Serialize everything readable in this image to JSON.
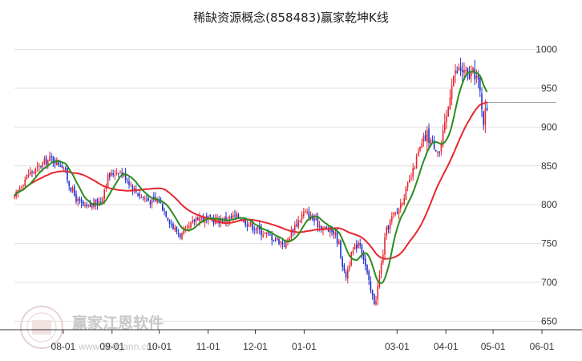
{
  "chart_data": {
    "type": "candlestick",
    "title": "稀缺资源概念(858483)赢家乾坤K线",
    "ylim": [
      640,
      1010
    ],
    "y_ticks": [
      650,
      700,
      750,
      800,
      850,
      900,
      950,
      1000
    ],
    "x_ticks": [
      "08-01",
      "09-01",
      "10-01",
      "11-01",
      "12-01",
      "01-01",
      "03-01",
      "04-01",
      "05-01",
      "06-01"
    ],
    "last_close": 932,
    "colors": {
      "up": "#e8262e",
      "down": "#1f2fd0",
      "ma_short": "#2a8c1f",
      "ma_long": "#e8262e",
      "grid": "#e0e0e0"
    },
    "anchors": [
      {
        "date": "07-01",
        "v": 808
      },
      {
        "date": "07-05",
        "v": 825
      },
      {
        "date": "07-10",
        "v": 840
      },
      {
        "date": "07-15",
        "v": 845
      },
      {
        "date": "07-20",
        "v": 855
      },
      {
        "date": "07-25",
        "v": 860
      },
      {
        "date": "07-28",
        "v": 855
      },
      {
        "date": "08-01",
        "v": 850
      },
      {
        "date": "08-05",
        "v": 825
      },
      {
        "date": "08-10",
        "v": 805
      },
      {
        "date": "08-15",
        "v": 795
      },
      {
        "date": "08-20",
        "v": 800
      },
      {
        "date": "08-25",
        "v": 805
      },
      {
        "date": "08-29",
        "v": 835
      },
      {
        "date": "09-05",
        "v": 845
      },
      {
        "date": "09-10",
        "v": 835
      },
      {
        "date": "09-15",
        "v": 820
      },
      {
        "date": "09-20",
        "v": 810
      },
      {
        "date": "09-25",
        "v": 805
      },
      {
        "date": "10-01",
        "v": 805
      },
      {
        "date": "10-05",
        "v": 790
      },
      {
        "date": "10-10",
        "v": 770
      },
      {
        "date": "10-15",
        "v": 760
      },
      {
        "date": "10-20",
        "v": 770
      },
      {
        "date": "10-25",
        "v": 785
      },
      {
        "date": "11-01",
        "v": 780
      },
      {
        "date": "11-10",
        "v": 780
      },
      {
        "date": "11-20",
        "v": 785
      },
      {
        "date": "11-25",
        "v": 778
      },
      {
        "date": "12-01",
        "v": 770
      },
      {
        "date": "12-05",
        "v": 765
      },
      {
        "date": "12-10",
        "v": 760
      },
      {
        "date": "12-15",
        "v": 755
      },
      {
        "date": "12-20",
        "v": 748
      },
      {
        "date": "12-25",
        "v": 770
      },
      {
        "date": "01-01",
        "v": 790
      },
      {
        "date": "01-05",
        "v": 785
      },
      {
        "date": "01-10",
        "v": 775
      },
      {
        "date": "01-15",
        "v": 768
      },
      {
        "date": "01-20",
        "v": 765
      },
      {
        "date": "01-23",
        "v": 750
      },
      {
        "date": "01-27",
        "v": 705
      },
      {
        "date": "01-31",
        "v": 735
      },
      {
        "date": "02-05",
        "v": 755
      },
      {
        "date": "02-08",
        "v": 730
      },
      {
        "date": "02-12",
        "v": 690
      },
      {
        "date": "02-15",
        "v": 672
      },
      {
        "date": "02-18",
        "v": 710
      },
      {
        "date": "02-22",
        "v": 765
      },
      {
        "date": "02-26",
        "v": 785
      },
      {
        "date": "03-01",
        "v": 790
      },
      {
        "date": "03-05",
        "v": 810
      },
      {
        "date": "03-10",
        "v": 835
      },
      {
        "date": "03-15",
        "v": 870
      },
      {
        "date": "03-20",
        "v": 890
      },
      {
        "date": "03-25",
        "v": 875
      },
      {
        "date": "03-28",
        "v": 868
      },
      {
        "date": "04-01",
        "v": 905
      },
      {
        "date": "04-05",
        "v": 965
      },
      {
        "date": "04-10",
        "v": 975
      },
      {
        "date": "04-15",
        "v": 965
      },
      {
        "date": "04-20",
        "v": 970
      },
      {
        "date": "04-23",
        "v": 940
      },
      {
        "date": "04-25",
        "v": 910
      },
      {
        "date": "04-28",
        "v": 932
      }
    ]
  },
  "watermark": {
    "logo_text": "赢家江恩软件",
    "url": "www.369gann.com"
  }
}
